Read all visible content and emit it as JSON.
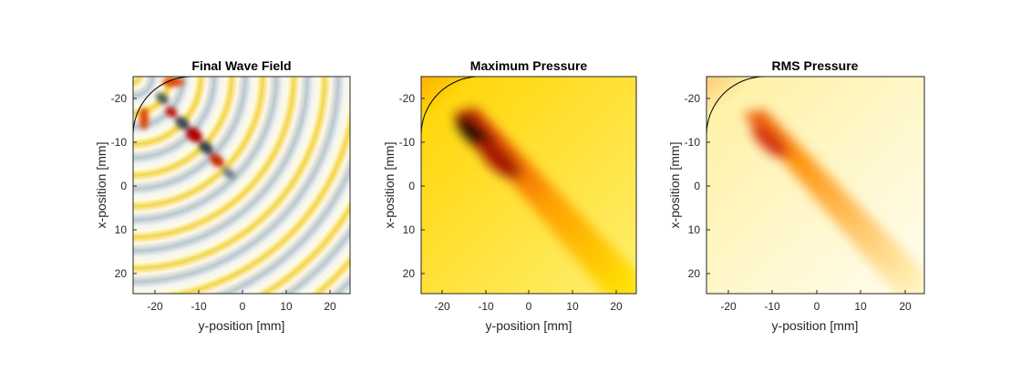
{
  "figure": {
    "panels": [
      {
        "title": "Final Wave Field",
        "xlabel": "y-position [mm]",
        "ylabel": "x-position [mm]"
      },
      {
        "title": "Maximum Pressure",
        "xlabel": "y-position [mm]",
        "ylabel": "x-position [mm]"
      },
      {
        "title": "RMS Pressure",
        "xlabel": "y-position [mm]",
        "ylabel": "x-position [mm]"
      }
    ]
  },
  "chart_data": [
    {
      "type": "heatmap",
      "title": "Final Wave Field",
      "xlabel": "y-position [mm]",
      "ylabel": "x-position [mm]",
      "xlim": [
        -25,
        24
      ],
      "ylim": [
        -25,
        25
      ],
      "y_reversed": true,
      "xticks": [
        -20,
        -10,
        0,
        10,
        20
      ],
      "yticks": [
        -20,
        -10,
        0,
        10,
        20
      ],
      "colormap": "blue-white-red (signed field)",
      "grid": false,
      "legend": "none",
      "overlay": "curved source arc near top-left corner",
      "pattern": "circular wavefronts from top-left source, high-amplitude focal region near (y=-10, x=-11) extending toward center"
    },
    {
      "type": "heatmap",
      "title": "Maximum Pressure",
      "xlabel": "y-position [mm]",
      "ylabel": "x-position [mm]",
      "xlim": [
        -25,
        24
      ],
      "ylim": [
        -25,
        25
      ],
      "y_reversed": true,
      "xticks": [
        -20,
        -10,
        0,
        10,
        20
      ],
      "yticks": [
        -20,
        -10,
        0,
        10,
        20
      ],
      "colormap": "hot (black-red-yellow-white)",
      "grid": false,
      "legend": "none",
      "overlay": "curved source arc near top-left corner",
      "pattern": "focused beam from top-left arc along diagonal, peak near (y=-12, x=-13)"
    },
    {
      "type": "heatmap",
      "title": "RMS Pressure",
      "xlabel": "y-position [mm]",
      "ylabel": "x-position [mm]",
      "xlim": [
        -25,
        24
      ],
      "ylim": [
        -25,
        25
      ],
      "y_reversed": true,
      "xticks": [
        -20,
        -10,
        0,
        10,
        20
      ],
      "yticks": [
        -20,
        -10,
        0,
        10,
        20
      ],
      "colormap": "hot (black-red-yellow-white)",
      "grid": false,
      "legend": "none",
      "overlay": "curved source arc near top-left corner",
      "pattern": "weaker focused beam from top-left arc, peak near (y=-9, x=-10)"
    }
  ]
}
